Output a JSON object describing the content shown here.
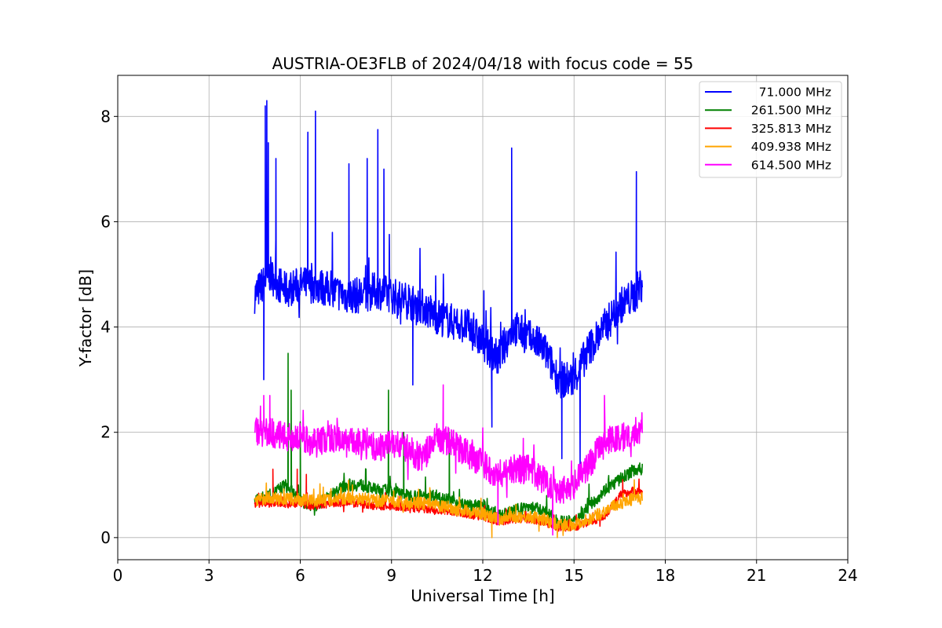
{
  "chart_data": {
    "type": "line",
    "title": "AUSTRIA-OE3FLB of 2024/04/18 with focus code = 55",
    "xlabel": "Universal Time [h]",
    "ylabel": "Y-factor [dB]",
    "xlim": [
      0,
      24
    ],
    "ylim": [
      -0.42,
      8.78
    ],
    "xticks": [
      0,
      3,
      6,
      9,
      12,
      15,
      18,
      21,
      24
    ],
    "yticks": [
      0,
      2,
      4,
      6,
      8
    ],
    "grid": true,
    "legend_position": "top-right",
    "series": [
      {
        "name": "71.000 MHz",
        "color": "#0000ff",
        "x": [
          4.5,
          5.0,
          5.5,
          6.0,
          6.5,
          7.0,
          7.5,
          8.0,
          8.5,
          9.0,
          9.5,
          10.0,
          10.5,
          11.0,
          11.5,
          12.0,
          12.5,
          13.0,
          13.5,
          14.0,
          14.5,
          15.0,
          15.5,
          16.0,
          16.5,
          17.0,
          17.25
        ],
        "y": [
          4.6,
          5.0,
          4.7,
          4.8,
          4.8,
          4.7,
          4.6,
          4.6,
          4.7,
          4.6,
          4.5,
          4.4,
          4.2,
          4.1,
          4.0,
          3.7,
          3.4,
          4.0,
          3.8,
          3.6,
          3.0,
          3.0,
          3.6,
          4.0,
          4.4,
          4.6,
          4.9
        ],
        "noise": 0.35,
        "peaks": [
          [
            4.9,
            8.3
          ],
          [
            4.85,
            8.2
          ],
          [
            6.5,
            8.1
          ],
          [
            6.25,
            7.7
          ],
          [
            8.55,
            7.75
          ],
          [
            12.95,
            7.4
          ],
          [
            17.05,
            6.95
          ],
          [
            4.95,
            7.5
          ],
          [
            5.2,
            7.2
          ],
          [
            7.6,
            7.1
          ],
          [
            8.2,
            7.2
          ],
          [
            8.75,
            7.0
          ],
          [
            4.8,
            3.0
          ],
          [
            12.3,
            2.1
          ],
          [
            14.6,
            1.5
          ],
          [
            15.2,
            1.3
          ],
          [
            9.7,
            2.9
          ]
        ]
      },
      {
        "name": "261.500 MHz",
        "color": "#008000",
        "x": [
          4.5,
          5.0,
          5.5,
          6.0,
          6.5,
          7.0,
          7.5,
          8.0,
          8.5,
          9.0,
          9.5,
          10.0,
          10.5,
          11.0,
          11.5,
          12.0,
          12.5,
          13.0,
          13.5,
          14.0,
          14.5,
          15.0,
          15.5,
          16.0,
          16.5,
          17.0,
          17.25
        ],
        "y": [
          0.7,
          0.8,
          1.0,
          0.7,
          0.6,
          0.8,
          1.0,
          1.0,
          0.9,
          0.9,
          0.8,
          0.8,
          0.8,
          0.7,
          0.6,
          0.6,
          0.4,
          0.5,
          0.6,
          0.5,
          0.3,
          0.3,
          0.6,
          0.9,
          1.1,
          1.3,
          1.3
        ],
        "noise": 0.12,
        "peaks": [
          [
            5.6,
            3.5
          ],
          [
            5.7,
            2.8
          ],
          [
            8.9,
            2.8
          ],
          [
            6.0,
            2.2
          ],
          [
            10.9,
            2.0
          ],
          [
            9.4,
            2.0
          ]
        ]
      },
      {
        "name": "325.813 MHz",
        "color": "#ff0000",
        "x": [
          4.5,
          5.0,
          5.5,
          6.0,
          6.5,
          7.0,
          7.5,
          8.0,
          8.5,
          9.0,
          9.5,
          10.0,
          10.5,
          11.0,
          11.5,
          12.0,
          12.5,
          13.0,
          13.5,
          14.0,
          14.5,
          15.0,
          15.5,
          16.0,
          16.5,
          17.0,
          17.25
        ],
        "y": [
          0.65,
          0.65,
          0.65,
          0.65,
          0.6,
          0.65,
          0.65,
          0.65,
          0.6,
          0.6,
          0.55,
          0.55,
          0.5,
          0.5,
          0.45,
          0.4,
          0.3,
          0.35,
          0.35,
          0.3,
          0.2,
          0.2,
          0.3,
          0.4,
          0.8,
          0.9,
          0.85
        ],
        "noise": 0.08,
        "peaks": [
          [
            5.1,
            1.3
          ],
          [
            5.9,
            1.3
          ],
          [
            6.2,
            1.2
          ],
          [
            16.6,
            1.1
          ]
        ]
      },
      {
        "name": "409.938 MHz",
        "color": "#ffa500",
        "x": [
          4.5,
          5.0,
          5.5,
          6.0,
          6.5,
          7.0,
          7.5,
          8.0,
          8.5,
          9.0,
          9.5,
          10.0,
          10.5,
          11.0,
          11.5,
          12.0,
          12.5,
          13.0,
          13.5,
          14.0,
          14.5,
          15.0,
          15.5,
          16.0,
          16.5,
          17.0,
          17.25
        ],
        "y": [
          0.72,
          0.75,
          0.73,
          0.72,
          0.7,
          0.72,
          0.75,
          0.75,
          0.7,
          0.7,
          0.65,
          0.65,
          0.6,
          0.55,
          0.5,
          0.45,
          0.35,
          0.4,
          0.4,
          0.35,
          0.25,
          0.25,
          0.35,
          0.5,
          0.65,
          0.75,
          0.75
        ],
        "noise": 0.12,
        "peaks": [
          [
            12.3,
            0.0
          ],
          [
            14.45,
            0.0
          ]
        ]
      },
      {
        "name": "614.500 MHz",
        "color": "#ff00ff",
        "x": [
          4.5,
          5.0,
          5.5,
          6.0,
          6.5,
          7.0,
          7.5,
          8.0,
          8.5,
          9.0,
          9.5,
          10.0,
          10.5,
          11.0,
          11.5,
          12.0,
          12.5,
          13.0,
          13.5,
          14.0,
          14.5,
          15.0,
          15.5,
          16.0,
          16.5,
          17.0,
          17.25
        ],
        "y": [
          2.0,
          2.0,
          1.9,
          1.9,
          1.8,
          1.9,
          1.8,
          1.8,
          1.7,
          1.8,
          1.7,
          1.5,
          1.9,
          1.8,
          1.6,
          1.4,
          1.2,
          1.3,
          1.3,
          1.1,
          0.9,
          1.0,
          1.4,
          1.8,
          1.9,
          2.0,
          2.1
        ],
        "noise": 0.28,
        "peaks": [
          [
            10.7,
            2.9
          ],
          [
            4.8,
            2.7
          ],
          [
            5.0,
            2.7
          ],
          [
            16.0,
            2.7
          ],
          [
            12.5,
            0.25
          ],
          [
            14.3,
            0.05
          ]
        ]
      }
    ]
  }
}
